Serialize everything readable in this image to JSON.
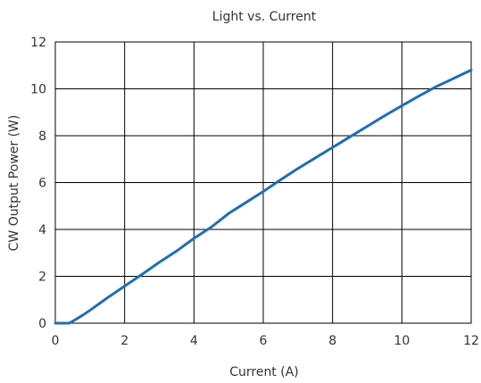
{
  "chart_data": {
    "type": "line",
    "title": "Light vs. Current",
    "xlabel": "Current (A)",
    "ylabel": "CW Output Power (W)",
    "xlim": [
      0,
      12
    ],
    "ylim": [
      0,
      12
    ],
    "x_ticks": [
      0,
      2,
      4,
      6,
      8,
      10,
      12
    ],
    "y_ticks": [
      0,
      2,
      4,
      6,
      8,
      10,
      12
    ],
    "grid": true,
    "legend": "none",
    "series": [
      {
        "color": "#1f6fb2",
        "x": [
          0,
          0.4,
          0.5,
          0.8,
          1.0,
          1.5,
          2.0,
          2.5,
          3.0,
          3.5,
          4.0,
          4.5,
          5.0,
          5.5,
          6.0,
          6.5,
          7.0,
          7.5,
          8.0,
          8.5,
          9.0,
          9.5,
          10.0,
          10.5,
          11.0,
          11.5,
          12.0
        ],
        "y": [
          0,
          0,
          0.08,
          0.35,
          0.55,
          1.08,
          1.58,
          2.08,
          2.6,
          3.08,
          3.62,
          4.1,
          4.68,
          5.15,
          5.62,
          6.12,
          6.6,
          7.05,
          7.5,
          7.95,
          8.4,
          8.85,
          9.28,
          9.7,
          10.1,
          10.45,
          10.8
        ]
      }
    ]
  }
}
